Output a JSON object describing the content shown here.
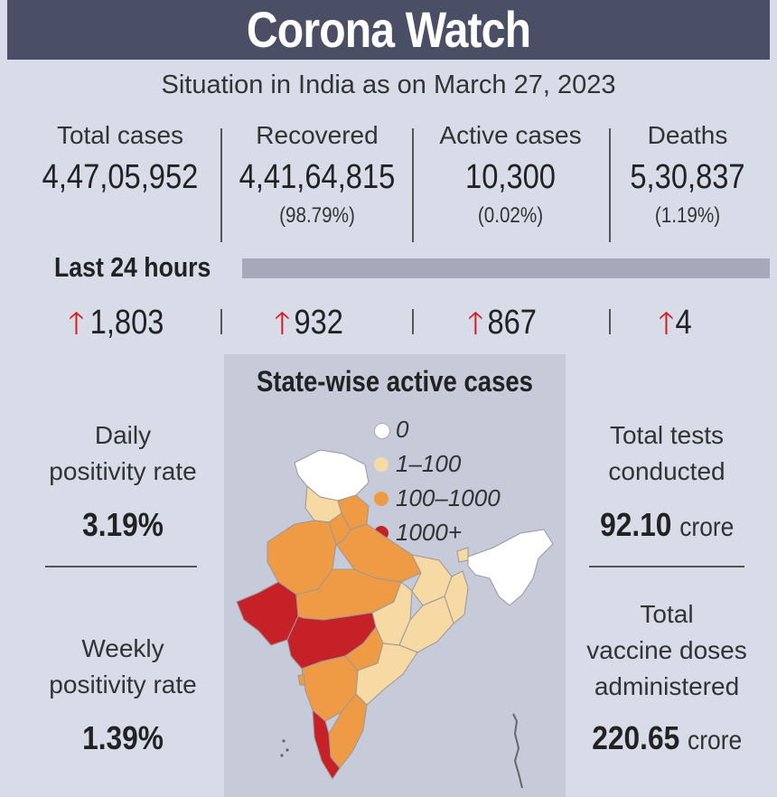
{
  "header": {
    "title": "Corona Watch"
  },
  "subtitle": "Situation in India as on March 27, 2023",
  "stats": [
    {
      "label": "Total cases",
      "value": "4,47,05,952",
      "pct": ""
    },
    {
      "label": "Recovered",
      "value": "4,41,64,815",
      "pct": "(98.79%)"
    },
    {
      "label": "Active cases",
      "value": "10,300",
      "pct": "(0.02%)"
    },
    {
      "label": "Deaths",
      "value": "5,30,837",
      "pct": "(1.19%)"
    }
  ],
  "last24": {
    "label": "Last 24 hours",
    "deltas": [
      "1,803",
      "932",
      "867",
      "4"
    ]
  },
  "map": {
    "title": "State-wise active cases",
    "legend": [
      {
        "label": "0",
        "color": "#ffffff"
      },
      {
        "label": "1–100",
        "color": "#f7d9a4"
      },
      {
        "label": "100–1000",
        "color": "#ef9a45"
      },
      {
        "label": "1000+",
        "color": "#c62127"
      }
    ]
  },
  "left": {
    "daily_label_1": "Daily",
    "daily_label_2": "positivity rate",
    "daily_value": "3.19%",
    "weekly_label_1": "Weekly",
    "weekly_label_2": "positivity rate",
    "weekly_value": "1.39%"
  },
  "right": {
    "tests_label_1": "Total tests",
    "tests_label_2": "conducted",
    "tests_value": "92.10",
    "tests_unit": "crore",
    "vaccine_label_1": "Total",
    "vaccine_label_2": "vaccine doses",
    "vaccine_label_3": "administered",
    "vaccine_value": "220.65",
    "vaccine_unit": "crore"
  }
}
